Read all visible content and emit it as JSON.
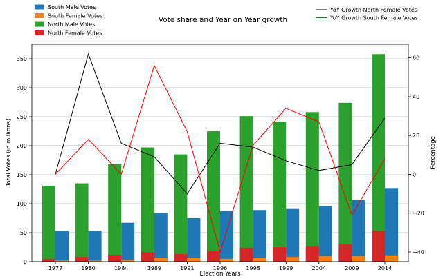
{
  "chart_data": {
    "type": "bar",
    "title": "Vote share and Year on Year growth",
    "xlabel": "Election Years",
    "ylabel": "Total Votes (in millions)",
    "ylabel_right": "Percentage",
    "categories": [
      "1977",
      "1980",
      "1984",
      "1989",
      "1991",
      "1996",
      "1998",
      "1999",
      "2004",
      "2009",
      "2014"
    ],
    "ylim": [
      0,
      375
    ],
    "yticks": [
      0,
      50,
      100,
      150,
      200,
      250,
      300,
      350
    ],
    "ylim_right": [
      -45,
      67
    ],
    "yticks_right": [
      -40,
      -20,
      0,
      20,
      40,
      60
    ],
    "grid": true,
    "legend_left_placement": "top-left",
    "legend_right_placement": "top-right",
    "bar_series": [
      {
        "name": "South Male Votes",
        "color": "#1f77b4",
        "values": [
          53,
          53,
          67,
          84,
          75,
          87,
          89,
          92,
          96,
          106,
          127
        ]
      },
      {
        "name": "South Female Votes",
        "color": "#ff7f0e",
        "values": [
          2,
          2,
          3,
          6,
          6,
          5,
          6,
          8,
          10,
          10,
          11
        ]
      },
      {
        "name": "North Male Votes",
        "color": "#2ca02c",
        "values": [
          131,
          135,
          168,
          197,
          185,
          225,
          251,
          241,
          258,
          274,
          358
        ]
      },
      {
        "name": "North Female Votes",
        "color": "#d62728",
        "values": [
          5,
          8,
          12,
          16,
          13,
          18,
          24,
          25,
          27,
          30,
          53
        ]
      }
    ],
    "line_series": [
      {
        "name": "YoY Growth North Female Votes",
        "color": "#000000",
        "values": [
          0,
          62,
          16,
          9,
          -10,
          16,
          14,
          7,
          2,
          5,
          29
        ]
      },
      {
        "name": "YoY Growth South Female Votes",
        "color": "#ff0000",
        "values": [
          0,
          18,
          0,
          56,
          22,
          -40,
          15,
          34,
          27,
          -21,
          8
        ]
      }
    ]
  }
}
